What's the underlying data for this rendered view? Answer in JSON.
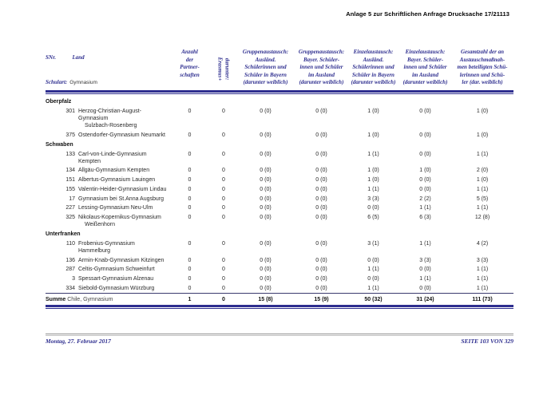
{
  "page": {
    "header_right": "Anlage 5 zur Schriftlichen Anfrage Drucksache 17/21113",
    "footer_left": "Montag, 27. Februar 2017",
    "footer_right": "SEITE 103 VON 329"
  },
  "colors": {
    "navy": "#2e2e8f",
    "body_text": "#2a2a2a",
    "footer_rule_gray": "#8f8f8f"
  },
  "table": {
    "header": {
      "snr": "SNr.",
      "land": "Land",
      "schulart_label": "Schulart:",
      "schulart_value": "Gymnasium",
      "partnerschaften": "Anzahl\nder\nPartner-\nschaften",
      "erasmus": "darunter:\nErasmus+",
      "exchange_cols": [
        "Gruppenaustausch:\nAusländ.\nSchülerinnen und\nSchüler in Bayern\n(darunter weiblich)",
        "Gruppenaustausch:\nBayer. Schüler-\ninnen und Schüler\nim Ausland\n(darunter weiblich)",
        "Einzelaustausch:\nAusländ.\nSchülerinnen und\nSchüler in Bayern\n(darunter weiblich)",
        "Einzelaustausch:\nBayer. Schüler-\ninnen und Schüler\nim Ausland\n(darunter weiblich)",
        "Gesamtzahl der an\nAustauschmaßnah-\nmen beteiligten Schü-\nlerinnen und Schü-\nler (dar. weiblich)"
      ]
    },
    "sections": [
      {
        "name": "Oberpfalz",
        "rows": [
          {
            "snr": "301",
            "name": "Herzog-Christian-August-Gymnasium",
            "name2": "Sulzbach-Rosenberg",
            "values": [
              "0",
              "0",
              "0 (0)",
              "0 (0)",
              "1 (0)",
              "0 (0)",
              "1 (0)"
            ]
          },
          {
            "snr": "375",
            "name": "Ostendorfer-Gymnasium Neumarkt",
            "name2": "",
            "values": [
              "0",
              "0",
              "0 (0)",
              "0 (0)",
              "1 (0)",
              "0 (0)",
              "1 (0)"
            ]
          }
        ]
      },
      {
        "name": "Schwaben",
        "rows": [
          {
            "snr": "133",
            "name": "Carl-von-Linde-Gymnasium Kempten",
            "name2": "",
            "values": [
              "0",
              "0",
              "0 (0)",
              "0 (0)",
              "1 (1)",
              "0 (0)",
              "1 (1)"
            ]
          },
          {
            "snr": "134",
            "name": "Allgäu-Gymnasium Kempten",
            "name2": "",
            "values": [
              "0",
              "0",
              "0 (0)",
              "0 (0)",
              "1 (0)",
              "1 (0)",
              "2 (0)"
            ]
          },
          {
            "snr": "151",
            "name": "Albertus-Gymnasium Lauingen",
            "name2": "",
            "values": [
              "0",
              "0",
              "0 (0)",
              "0 (0)",
              "1 (0)",
              "0 (0)",
              "1 (0)"
            ]
          },
          {
            "snr": "155",
            "name": "Valentin-Heider-Gymnasium Lindau",
            "name2": "",
            "values": [
              "0",
              "0",
              "0 (0)",
              "0 (0)",
              "1 (1)",
              "0 (0)",
              "1 (1)"
            ]
          },
          {
            "snr": "17",
            "name": "Gymnasium bei St.Anna Augsburg",
            "name2": "",
            "values": [
              "0",
              "0",
              "0 (0)",
              "0 (0)",
              "3 (3)",
              "2 (2)",
              "5 (5)"
            ]
          },
          {
            "snr": "227",
            "name": "Lessing-Gymnasium Neu-Ulm",
            "name2": "",
            "values": [
              "0",
              "0",
              "0 (0)",
              "0 (0)",
              "0 (0)",
              "1 (1)",
              "1 (1)"
            ]
          },
          {
            "snr": "325",
            "name": "Nikolaus-Kopernikus-Gymnasium",
            "name2": "Weißenhorn",
            "values": [
              "0",
              "0",
              "0 (0)",
              "0 (0)",
              "6 (5)",
              "6 (3)",
              "12 (8)"
            ]
          }
        ]
      },
      {
        "name": "Unterfranken",
        "rows": [
          {
            "snr": "110",
            "name": "Frobenius-Gymnasium Hammelburg",
            "name2": "",
            "values": [
              "0",
              "0",
              "0 (0)",
              "0 (0)",
              "3 (1)",
              "1 (1)",
              "4 (2)"
            ]
          },
          {
            "snr": "136",
            "name": "Armin-Knab-Gymnasium Kitzingen",
            "name2": "",
            "values": [
              "0",
              "0",
              "0 (0)",
              "0 (0)",
              "0 (0)",
              "3 (3)",
              "3 (3)"
            ]
          },
          {
            "snr": "287",
            "name": "Celtis-Gymnasium Schweinfurt",
            "name2": "",
            "values": [
              "0",
              "0",
              "0 (0)",
              "0 (0)",
              "1 (1)",
              "0 (0)",
              "1 (1)"
            ]
          },
          {
            "snr": "3",
            "name": "Spessart-Gymnasium Alzenau",
            "name2": "",
            "values": [
              "0",
              "0",
              "0 (0)",
              "0 (0)",
              "0 (0)",
              "1 (1)",
              "1 (1)"
            ]
          },
          {
            "snr": "334",
            "name": "Siebold-Gymnasium Würzburg",
            "name2": "",
            "values": [
              "0",
              "0",
              "0 (0)",
              "0 (0)",
              "1 (1)",
              "0 (0)",
              "1 (1)"
            ]
          }
        ]
      }
    ],
    "summe": {
      "label_bold": "Summe",
      "label_rest": "Chile, Gymnasium",
      "values": [
        "1",
        "0",
        "15 (8)",
        "15 (9)",
        "50 (32)",
        "31 (24)",
        "111 (73)"
      ]
    }
  }
}
